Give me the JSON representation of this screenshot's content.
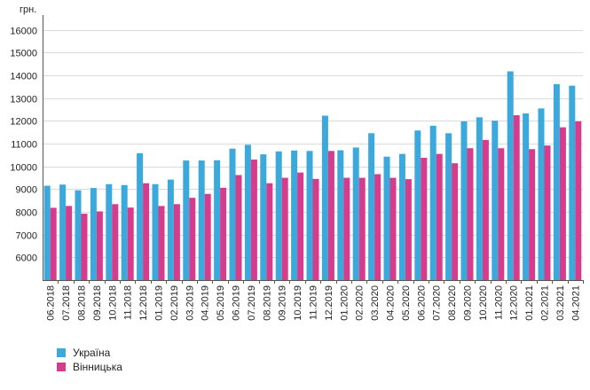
{
  "chart_data": {
    "type": "bar",
    "unit_label": "грн.",
    "categories": [
      "06.2018",
      "07.2018",
      "08.2018",
      "09.2018",
      "10.2018",
      "11.2018",
      "12.2018",
      "01.2019",
      "02.2019",
      "03.2019",
      "04.2019",
      "05.2019",
      "06.2019",
      "07.2019",
      "08.2019",
      "09.2019",
      "10.2019",
      "11.2019",
      "12.2019",
      "01.2020",
      "02.2020",
      "03.2020",
      "04.2020",
      "05.2020",
      "06.2020",
      "07.2020",
      "08.2020",
      "09.2020",
      "10.2020",
      "11.2020",
      "12.2020",
      "01.2021",
      "02.2021",
      "03.2021",
      "04.2021"
    ],
    "series": [
      {
        "name": "Україна",
        "color": "#3ba9db",
        "values": [
          9150,
          9200,
          8950,
          9050,
          9220,
          9180,
          10580,
          9220,
          9420,
          10260,
          10260,
          10270,
          10780,
          10950,
          10530,
          10660,
          10700,
          10680,
          12230,
          10710,
          10830,
          11460,
          10430,
          10550,
          11580,
          11790,
          11460,
          11980,
          12160,
          12010,
          14180,
          12330,
          12550,
          13620,
          13550
        ]
      },
      {
        "name": "Вінницька",
        "color": "#d63c8c",
        "values": [
          8180,
          8260,
          7920,
          8020,
          8340,
          8190,
          9260,
          8260,
          8340,
          8620,
          8790,
          9060,
          9620,
          10300,
          9260,
          9500,
          9730,
          9450,
          10680,
          9500,
          9500,
          9660,
          9500,
          9440,
          10380,
          10550,
          10140,
          10800,
          11160,
          10800,
          12250,
          10760,
          10920,
          11720,
          11980
        ]
      }
    ],
    "ylim": [
      5000,
      16500
    ],
    "yticks": [
      6000,
      7000,
      8000,
      9000,
      10000,
      11000,
      12000,
      13000,
      14000,
      15000,
      16000
    ],
    "grid": true,
    "legend_position": "bottom-left"
  },
  "legend": {
    "items": [
      {
        "label": "Україна",
        "color": "#3ba9db"
      },
      {
        "label": "Вінницька",
        "color": "#d63c8c"
      }
    ]
  }
}
